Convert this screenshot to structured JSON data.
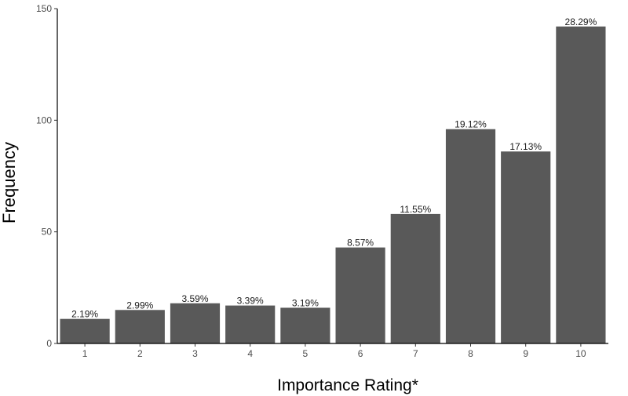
{
  "chart_data": {
    "type": "bar",
    "categories": [
      "1",
      "2",
      "3",
      "4",
      "5",
      "6",
      "7",
      "8",
      "9",
      "10"
    ],
    "values": [
      11,
      15,
      18,
      17,
      16,
      43,
      58,
      96,
      86,
      142
    ],
    "data_labels": [
      "2.19%",
      "2.99%",
      "3.59%",
      "3.39%",
      "3.19%",
      "8.57%",
      "11.55%",
      "19.12%",
      "17.13%",
      "28.29%"
    ],
    "xlabel": "Importance Rating*",
    "ylabel": "Frequency",
    "ylim": [
      0,
      150
    ],
    "yticks": [
      0,
      50,
      100,
      150
    ],
    "bar_color": "#595959",
    "grid": false
  }
}
